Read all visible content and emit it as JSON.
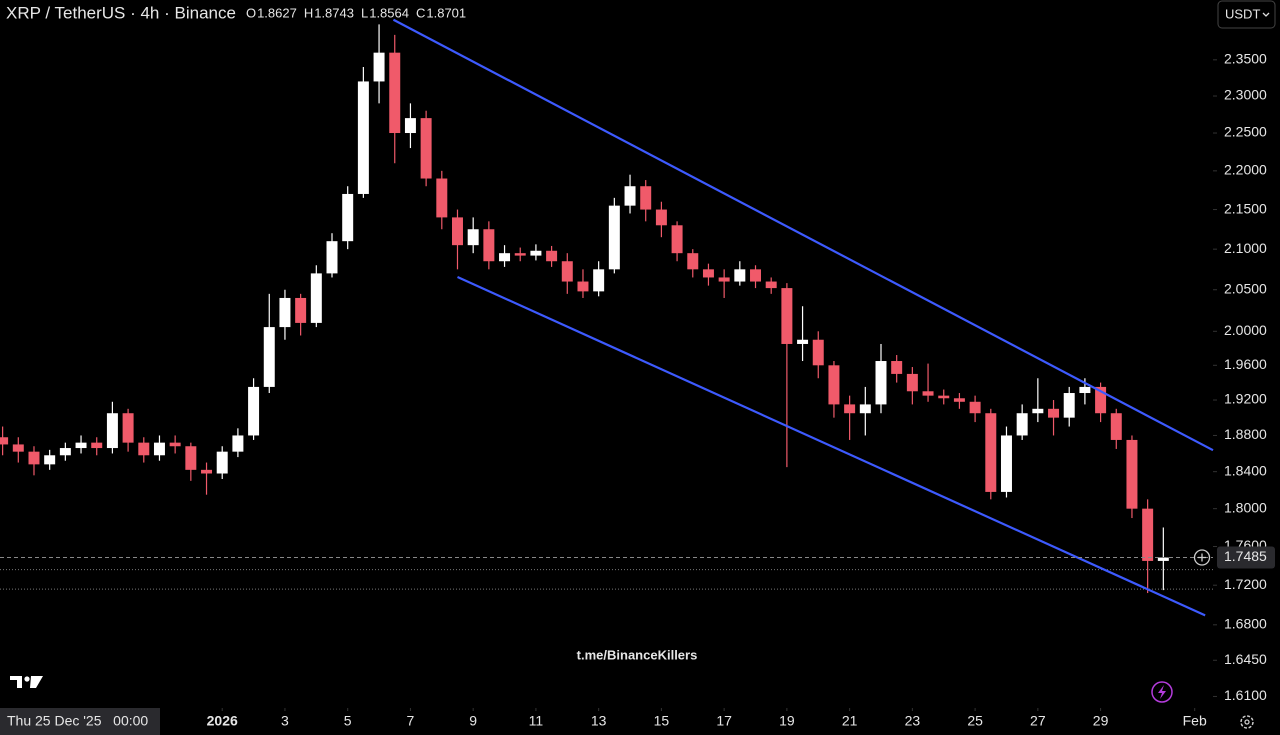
{
  "chart_data": {
    "type": "candlestick",
    "title": "XRP / TetherUS · 4h · Binance",
    "ohlc": [
      {
        "label": "O",
        "value": 1.8627
      },
      {
        "label": "H",
        "value": 1.8743
      },
      {
        "label": "L",
        "value": 1.8564
      },
      {
        "label": "C",
        "value": 1.8701
      }
    ],
    "currency": "USDT",
    "watermark": "t.me/BinanceKillers",
    "cursor_time": "Thu 25 Dec '25   00:00",
    "current_price": 1.7485,
    "up_color": "#ffffff",
    "down_color": "#f05a6a",
    "log_scale": true,
    "grid": false,
    "x": [
      "2025-12-25 00:00",
      "2025-12-25 12:00",
      "2025-12-26 00:00",
      "2025-12-26 12:00",
      "2025-12-27 00:00",
      "2025-12-27 12:00",
      "2025-12-28 00:00",
      "2025-12-28 12:00",
      "2025-12-29 00:00",
      "2025-12-29 12:00",
      "2025-12-30 00:00",
      "2025-12-30 12:00",
      "2025-12-31 00:00",
      "2025-12-31 12:00",
      "2026-01-01 00:00",
      "2026-01-01 12:00",
      "2026-01-02 00:00",
      "2026-01-02 12:00",
      "2026-01-03 00:00",
      "2026-01-03 12:00",
      "2026-01-04 00:00",
      "2026-01-04 12:00",
      "2026-01-05 00:00",
      "2026-01-05 12:00",
      "2026-01-06 00:00",
      "2026-01-06 12:00",
      "2026-01-07 00:00",
      "2026-01-07 12:00",
      "2026-01-08 00:00",
      "2026-01-08 12:00",
      "2026-01-09 00:00",
      "2026-01-09 12:00",
      "2026-01-10 00:00",
      "2026-01-10 12:00",
      "2026-01-11 00:00",
      "2026-01-11 12:00",
      "2026-01-12 00:00",
      "2026-01-12 12:00",
      "2026-01-13 00:00",
      "2026-01-13 12:00",
      "2026-01-14 00:00",
      "2026-01-14 12:00",
      "2026-01-15 00:00",
      "2026-01-15 12:00",
      "2026-01-16 00:00",
      "2026-01-16 12:00",
      "2026-01-17 00:00",
      "2026-01-17 12:00",
      "2026-01-18 00:00",
      "2026-01-18 12:00",
      "2026-01-19 00:00",
      "2026-01-19 12:00",
      "2026-01-20 00:00",
      "2026-01-20 12:00",
      "2026-01-21 00:00",
      "2026-01-21 12:00",
      "2026-01-22 00:00",
      "2026-01-22 12:00",
      "2026-01-23 00:00",
      "2026-01-23 12:00",
      "2026-01-24 00:00",
      "2026-01-24 12:00",
      "2026-01-25 00:00",
      "2026-01-25 12:00",
      "2026-01-26 00:00",
      "2026-01-26 12:00",
      "2026-01-27 00:00",
      "2026-01-27 12:00",
      "2026-01-28 00:00",
      "2026-01-28 12:00",
      "2026-01-29 00:00",
      "2026-01-29 12:00",
      "2026-01-30 00:00",
      "2026-01-30 12:00",
      "2026-01-31 00:00"
    ],
    "open": [
      1.878,
      1.87,
      1.862,
      1.848,
      1.858,
      1.866,
      1.872,
      1.866,
      1.905,
      1.872,
      1.858,
      1.872,
      1.868,
      1.842,
      1.838,
      1.862,
      1.88,
      1.935,
      2.005,
      2.04,
      2.01,
      2.07,
      2.11,
      2.17,
      2.32,
      2.36,
      2.25,
      2.27,
      2.19,
      2.14,
      2.105,
      2.125,
      2.085,
      2.095,
      2.092,
      2.098,
      2.085,
      2.06,
      2.048,
      2.075,
      2.155,
      2.18,
      2.15,
      2.13,
      2.095,
      2.075,
      2.065,
      2.06,
      2.075,
      2.06,
      2.052,
      1.985,
      1.99,
      1.96,
      1.915,
      1.905,
      1.915,
      1.965,
      1.95,
      1.93,
      1.925,
      1.922,
      1.918,
      1.905,
      1.818,
      1.88,
      1.905,
      1.91,
      1.9,
      1.928,
      1.935,
      1.905,
      1.875,
      1.8,
      1.745
    ],
    "high": [
      1.89,
      1.878,
      1.868,
      1.864,
      1.872,
      1.88,
      1.878,
      1.918,
      1.91,
      1.878,
      1.88,
      1.88,
      1.872,
      1.85,
      1.868,
      1.888,
      1.945,
      2.045,
      2.05,
      2.045,
      2.08,
      2.12,
      2.18,
      2.34,
      2.4,
      2.385,
      2.29,
      2.28,
      2.2,
      2.15,
      2.14,
      2.135,
      2.105,
      2.102,
      2.106,
      2.104,
      2.095,
      2.075,
      2.085,
      2.165,
      2.195,
      2.188,
      2.16,
      2.135,
      2.1,
      2.082,
      2.075,
      2.085,
      2.08,
      2.065,
      2.058,
      2.03,
      2.0,
      1.965,
      1.925,
      1.935,
      1.985,
      1.972,
      1.958,
      1.962,
      1.932,
      1.928,
      1.925,
      1.91,
      1.89,
      1.915,
      1.945,
      1.92,
      1.935,
      1.945,
      1.94,
      1.91,
      1.88,
      1.81,
      1.78
    ],
    "low": [
      1.858,
      1.85,
      1.836,
      1.842,
      1.852,
      1.86,
      1.858,
      1.86,
      1.862,
      1.85,
      1.852,
      1.86,
      1.83,
      1.815,
      1.832,
      1.856,
      1.875,
      1.928,
      1.99,
      1.995,
      2.005,
      2.065,
      2.1,
      2.165,
      2.29,
      2.21,
      2.23,
      2.18,
      2.125,
      2.075,
      2.095,
      2.075,
      2.078,
      2.085,
      2.086,
      2.078,
      2.045,
      2.04,
      2.042,
      2.07,
      2.145,
      2.135,
      2.115,
      2.085,
      2.065,
      2.055,
      2.04,
      2.055,
      2.052,
      2.045,
      1.845,
      1.965,
      1.945,
      1.9,
      1.875,
      1.88,
      1.905,
      1.94,
      1.915,
      1.918,
      1.915,
      1.91,
      1.895,
      1.81,
      1.812,
      1.875,
      1.895,
      1.88,
      1.89,
      1.915,
      1.895,
      1.865,
      1.79,
      1.712,
      1.715
    ],
    "close": [
      1.87,
      1.862,
      1.848,
      1.858,
      1.866,
      1.872,
      1.866,
      1.905,
      1.872,
      1.858,
      1.872,
      1.868,
      1.842,
      1.838,
      1.862,
      1.88,
      1.935,
      2.005,
      2.04,
      2.01,
      2.07,
      2.11,
      2.17,
      2.32,
      2.36,
      2.25,
      2.27,
      2.19,
      2.14,
      2.105,
      2.125,
      2.085,
      2.095,
      2.092,
      2.098,
      2.085,
      2.06,
      2.048,
      2.075,
      2.155,
      2.18,
      2.15,
      2.13,
      2.095,
      2.075,
      2.065,
      2.06,
      2.075,
      2.06,
      2.052,
      1.985,
      1.99,
      1.96,
      1.915,
      1.905,
      1.915,
      1.965,
      1.95,
      1.93,
      1.925,
      1.922,
      1.918,
      1.905,
      1.818,
      1.88,
      1.905,
      1.91,
      1.9,
      1.928,
      1.935,
      1.905,
      1.875,
      1.8,
      1.745,
      1.7485
    ],
    "xlim": [
      "2025-12-24 22:00",
      "2026-02-01 14:00"
    ],
    "xticks": [
      {
        "value": "2026-01-01 00:00",
        "label": "2026"
      },
      {
        "value": "2026-01-03 00:00",
        "label": "3"
      },
      {
        "value": "2026-01-05 00:00",
        "label": "5"
      },
      {
        "value": "2026-01-07 00:00",
        "label": "7"
      },
      {
        "value": "2026-01-09 00:00",
        "label": "9"
      },
      {
        "value": "2026-01-11 00:00",
        "label": "11"
      },
      {
        "value": "2026-01-13 00:00",
        "label": "13"
      },
      {
        "value": "2026-01-15 00:00",
        "label": "15"
      },
      {
        "value": "2026-01-17 00:00",
        "label": "17"
      },
      {
        "value": "2026-01-19 00:00",
        "label": "19"
      },
      {
        "value": "2026-01-21 00:00",
        "label": "21"
      },
      {
        "value": "2026-01-23 00:00",
        "label": "23"
      },
      {
        "value": "2026-01-25 00:00",
        "label": "25"
      },
      {
        "value": "2026-01-27 00:00",
        "label": "27"
      },
      {
        "value": "2026-01-29 00:00",
        "label": "29"
      },
      {
        "value": "2026-02-01 00:00",
        "label": "Feb"
      }
    ],
    "ylim": [
      1.599,
      2.435
    ],
    "yticks": [
      {
        "value": 2.35,
        "label": "2.3500"
      },
      {
        "value": 2.3,
        "label": "2.3000"
      },
      {
        "value": 2.25,
        "label": "2.2500"
      },
      {
        "value": 2.2,
        "label": "2.2000"
      },
      {
        "value": 2.15,
        "label": "2.1500"
      },
      {
        "value": 2.1,
        "label": "2.1000"
      },
      {
        "value": 2.05,
        "label": "2.0500"
      },
      {
        "value": 2,
        "label": "2.0000"
      },
      {
        "value": 1.96,
        "label": "1.9600"
      },
      {
        "value": 1.92,
        "label": "1.9200"
      },
      {
        "value": 1.88,
        "label": "1.8800"
      },
      {
        "value": 1.84,
        "label": "1.8400"
      },
      {
        "value": 1.8,
        "label": "1.8000"
      },
      {
        "value": 1.76,
        "label": "1.7600"
      },
      {
        "value": 1.72,
        "label": "1.7200"
      },
      {
        "value": 1.68,
        "label": "1.6800"
      },
      {
        "value": 1.645,
        "label": "1.6450"
      },
      {
        "value": 1.61,
        "label": "1.6100"
      }
    ],
    "trendlines": [
      {
        "color": "#3d5afe",
        "x": [
          "2026-01-06 11:00",
          "2026-02-01 14:00"
        ],
        "y": [
          2.4066,
          1.8636
        ]
      },
      {
        "color": "#3d5afe",
        "x": [
          "2026-01-08 12:00",
          "2026-02-01 08:00"
        ],
        "y": [
          2.0656,
          1.6895
        ]
      }
    ],
    "hlines": [
      1.736,
      1.716
    ]
  }
}
